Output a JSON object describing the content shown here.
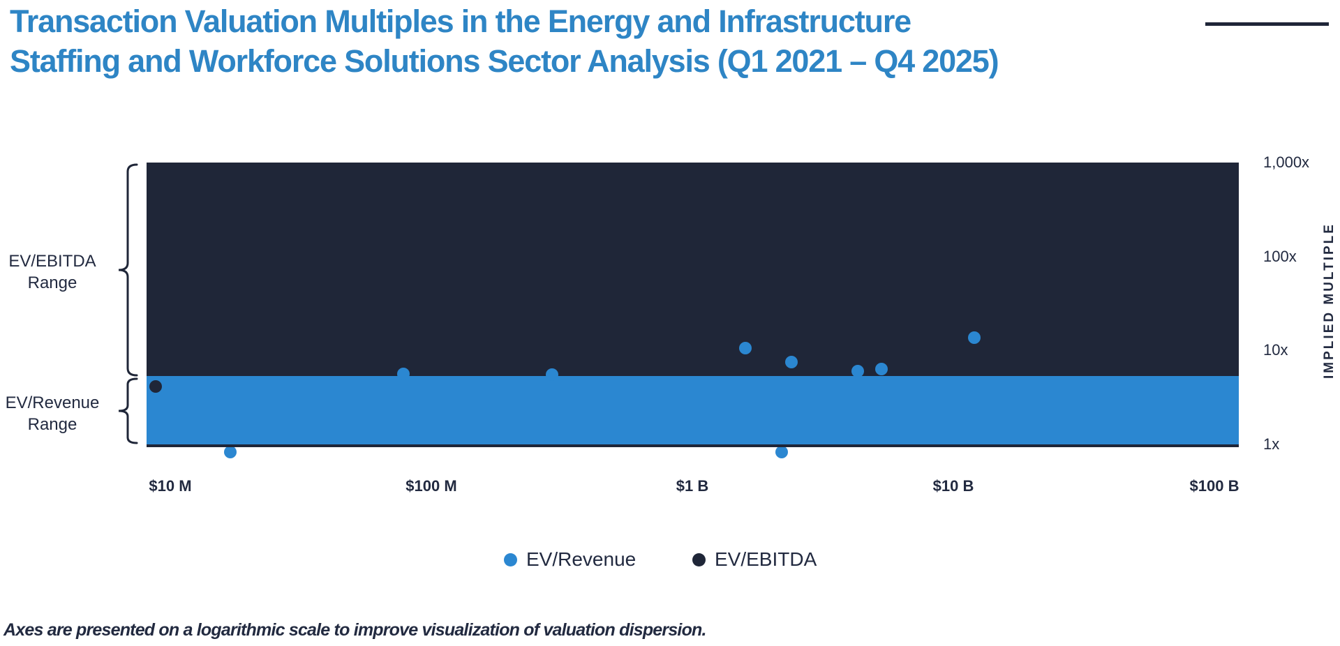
{
  "title": {
    "line1": "Transaction Valuation Multiples in the Energy and Infrastructure",
    "line2": "Staffing and Workforce Solutions Sector Analysis (Q1 2021 – Q4 2025)"
  },
  "colors": {
    "title_blue": "#2E85C5",
    "navy": "#1F2638",
    "blue": "#2B87D1",
    "text_navy": "#222A40"
  },
  "range_labels": {
    "ebitda_line1": "EV/EBITDA",
    "ebitda_line2": "Range",
    "revenue_line1": "EV/Revenue",
    "revenue_line2": "Range"
  },
  "y_axis_title": "IMPLIED MULTIPLE",
  "legend": [
    {
      "label": "EV/Revenue",
      "color": "#2B87D1"
    },
    {
      "label": "EV/EBITDA",
      "color": "#1F2638"
    }
  ],
  "footnote": "Axes are presented on a logarithmic scale to improve visualization of valuation dispersion.",
  "chart_data": {
    "type": "scatter",
    "title": "Transaction Valuation Multiples in the Energy and Infrastructure Staffing and Workforce Solutions Sector Analysis (Q1 2021 – Q4 2025)",
    "x_axis": {
      "scale": "log",
      "unit": "enterprise value, $ millions",
      "ticks": [
        {
          "label": "$10 M",
          "value_musd": 10
        },
        {
          "label": "$100 M",
          "value_musd": 100
        },
        {
          "label": "$1 B",
          "value_musd": 1000
        },
        {
          "label": "$10 B",
          "value_musd": 10000
        },
        {
          "label": "$100 B",
          "value_musd": 100000
        }
      ]
    },
    "y_axis": {
      "scale": "log",
      "label": "IMPLIED MULTIPLE",
      "range": [
        1,
        1000
      ],
      "ticks": [
        {
          "label": "1,000x",
          "multiple": 1000
        },
        {
          "label": "100x",
          "multiple": 100
        },
        {
          "label": "10x",
          "multiple": 10
        },
        {
          "label": "1x",
          "multiple": 1
        }
      ]
    },
    "bands": [
      {
        "name": "EV/EBITDA Range",
        "from_multiple": 5.3,
        "to_multiple": 1000,
        "color": "#1F2638"
      },
      {
        "name": "EV/Revenue Range",
        "from_multiple": 1,
        "to_multiple": 5.3,
        "color": "#2B87D1"
      }
    ],
    "series": [
      {
        "name": "EV/Revenue",
        "color": "#2B87D1",
        "points": [
          {
            "ev_musd": 17,
            "multiple": 0.83
          },
          {
            "ev_musd": 78,
            "multiple": 5.6
          },
          {
            "ev_musd": 290,
            "multiple": 5.5
          },
          {
            "ev_musd": 1600,
            "multiple": 10.6
          },
          {
            "ev_musd": 2200,
            "multiple": 0.83
          },
          {
            "ev_musd": 2400,
            "multiple": 7.5
          },
          {
            "ev_musd": 4300,
            "multiple": 6.0
          },
          {
            "ev_musd": 5300,
            "multiple": 6.3
          },
          {
            "ev_musd": 12000,
            "multiple": 13.7
          }
        ]
      },
      {
        "name": "EV/EBITDA",
        "color": "#1F2638",
        "points": [
          {
            "ev_musd": 8.8,
            "multiple": 4.1
          }
        ]
      }
    ],
    "note": "Axes are presented on a logarithmic scale to improve visualization of valuation dispersion."
  }
}
